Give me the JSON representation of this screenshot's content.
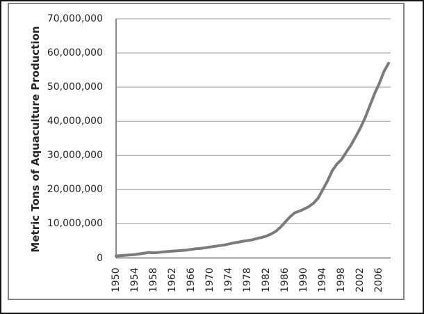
{
  "figure": {
    "outer_border_color": "#141414",
    "frame_border_color": "#848484",
    "background_color": "#ffffff",
    "text_color": "#262626"
  },
  "chart_data": {
    "type": "line",
    "title": "",
    "xlabel": "",
    "ylabel": "Metric Tons of Aquaculture Production",
    "legend_position": "none",
    "grid": "horizontal",
    "xlim": [
      1950,
      2008
    ],
    "ylim": [
      0,
      70000000
    ],
    "x": [
      1950,
      1951,
      1952,
      1953,
      1954,
      1955,
      1956,
      1957,
      1958,
      1959,
      1960,
      1961,
      1962,
      1963,
      1964,
      1965,
      1966,
      1967,
      1968,
      1969,
      1970,
      1971,
      1972,
      1973,
      1974,
      1975,
      1976,
      1977,
      1978,
      1979,
      1980,
      1981,
      1982,
      1983,
      1984,
      1985,
      1986,
      1987,
      1988,
      1989,
      1990,
      1991,
      1992,
      1993,
      1994,
      1995,
      1996,
      1997,
      1998,
      1999,
      2000,
      2001,
      2002,
      2003,
      2004,
      2005,
      2006,
      2007,
      2008
    ],
    "values": [
      600000,
      700000,
      800000,
      900000,
      1000000,
      1200000,
      1400000,
      1600000,
      1500000,
      1600000,
      1800000,
      1900000,
      2000000,
      2100000,
      2200000,
      2300000,
      2500000,
      2700000,
      2800000,
      3000000,
      3200000,
      3400000,
      3600000,
      3800000,
      4100000,
      4400000,
      4600000,
      4900000,
      5100000,
      5300000,
      5700000,
      6000000,
      6400000,
      7000000,
      7800000,
      9000000,
      10500000,
      12000000,
      13200000,
      13700000,
      14300000,
      15000000,
      16000000,
      17500000,
      20000000,
      22500000,
      25500000,
      27500000,
      28800000,
      31000000,
      33000000,
      35500000,
      38000000,
      41000000,
      44500000,
      48000000,
      51000000,
      54500000,
      57000000
    ],
    "x_tick_labels": [
      "1950",
      "1954",
      "1958",
      "1962",
      "1966",
      "1970",
      "1974",
      "1978",
      "1982",
      "1986",
      "1990",
      "1994",
      "1998",
      "2002",
      "2006"
    ],
    "y_tick_values": [
      0,
      10000000,
      20000000,
      30000000,
      40000000,
      50000000,
      60000000,
      70000000
    ],
    "y_tick_labels": [
      "0",
      "10,000,000",
      "20,000,000",
      "30,000,000",
      "40,000,000",
      "50,000,000",
      "60,000,000",
      "70,000,000"
    ],
    "line_color": "#7b7b7b",
    "line_width": 4,
    "axis_color": "#6f6f6f",
    "gridline_color": "#9b9b9b"
  }
}
